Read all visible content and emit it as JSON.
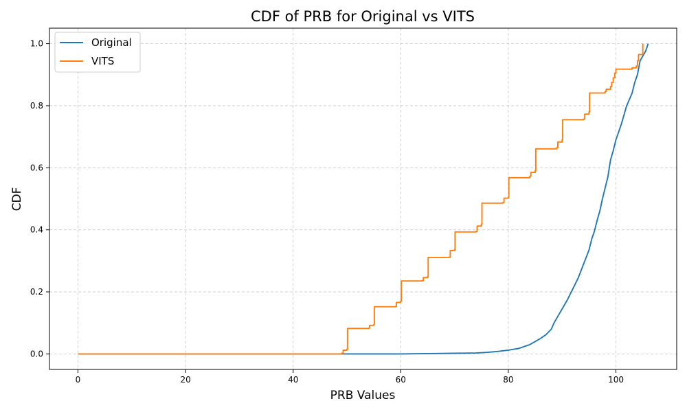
{
  "chart_data": {
    "type": "line",
    "title": "CDF of PRB for Original vs VITS",
    "xlabel": "PRB Values",
    "ylabel": "CDF",
    "xlim": [
      -5.3,
      111.3
    ],
    "ylim": [
      -0.05,
      1.05
    ],
    "xticks": [
      0,
      20,
      40,
      60,
      80,
      100
    ],
    "yticks": [
      0.0,
      0.2,
      0.4,
      0.6,
      0.8,
      1.0
    ],
    "xtick_labels": [
      "0",
      "20",
      "40",
      "60",
      "80",
      "100"
    ],
    "ytick_labels": [
      "0.0",
      "0.2",
      "0.4",
      "0.6",
      "0.8",
      "1.0"
    ],
    "grid": true,
    "legend_position": "top-left",
    "series": [
      {
        "name": "Original",
        "color": "#1f77b4",
        "step": false,
        "points": [
          [
            0,
            0
          ],
          [
            49,
            0
          ],
          [
            60,
            0
          ],
          [
            65,
            0.001
          ],
          [
            70,
            0.002
          ],
          [
            74,
            0.003
          ],
          [
            76,
            0.005
          ],
          [
            78,
            0.008
          ],
          [
            80,
            0.012
          ],
          [
            82,
            0.018
          ],
          [
            84,
            0.03
          ],
          [
            85,
            0.04
          ],
          [
            86,
            0.05
          ],
          [
            87,
            0.062
          ],
          [
            88,
            0.08
          ],
          [
            88.5,
            0.1
          ],
          [
            89,
            0.115
          ],
          [
            90,
            0.145
          ],
          [
            91,
            0.175
          ],
          [
            92,
            0.21
          ],
          [
            93,
            0.245
          ],
          [
            94,
            0.29
          ],
          [
            95,
            0.335
          ],
          [
            95.5,
            0.37
          ],
          [
            96,
            0.395
          ],
          [
            96.5,
            0.43
          ],
          [
            97,
            0.46
          ],
          [
            97.5,
            0.5
          ],
          [
            98,
            0.535
          ],
          [
            98.5,
            0.57
          ],
          [
            99,
            0.625
          ],
          [
            99.5,
            0.655
          ],
          [
            100,
            0.69
          ],
          [
            101,
            0.74
          ],
          [
            101.5,
            0.77
          ],
          [
            102,
            0.8
          ],
          [
            103,
            0.84
          ],
          [
            103.5,
            0.875
          ],
          [
            104,
            0.9
          ],
          [
            104.5,
            0.945
          ],
          [
            105,
            0.96
          ],
          [
            105.5,
            0.975
          ],
          [
            106,
            1.0
          ]
        ]
      },
      {
        "name": "VITS",
        "color": "#ff7f0e",
        "step": true,
        "points": [
          [
            0,
            0
          ],
          [
            49,
            0.002
          ],
          [
            49.3,
            0.012
          ],
          [
            50,
            0.015
          ],
          [
            50.1,
            0.082
          ],
          [
            54,
            0.083
          ],
          [
            54.2,
            0.092
          ],
          [
            55,
            0.095
          ],
          [
            55.1,
            0.152
          ],
          [
            59,
            0.153
          ],
          [
            59.2,
            0.166
          ],
          [
            60,
            0.17
          ],
          [
            60.1,
            0.235
          ],
          [
            64,
            0.236
          ],
          [
            64.2,
            0.246
          ],
          [
            65,
            0.25
          ],
          [
            65.1,
            0.311
          ],
          [
            69,
            0.312
          ],
          [
            69.2,
            0.333
          ],
          [
            70,
            0.336
          ],
          [
            70.1,
            0.393
          ],
          [
            74,
            0.395
          ],
          [
            74.2,
            0.412
          ],
          [
            75,
            0.418
          ],
          [
            75.1,
            0.486
          ],
          [
            79,
            0.488
          ],
          [
            79.2,
            0.502
          ],
          [
            80,
            0.506
          ],
          [
            80.1,
            0.568
          ],
          [
            84,
            0.573
          ],
          [
            84.2,
            0.585
          ],
          [
            85,
            0.59
          ],
          [
            85.1,
            0.661
          ],
          [
            89,
            0.665
          ],
          [
            89.2,
            0.683
          ],
          [
            90,
            0.69
          ],
          [
            90.1,
            0.755
          ],
          [
            94,
            0.757
          ],
          [
            94.2,
            0.773
          ],
          [
            95,
            0.78
          ],
          [
            95.1,
            0.841
          ],
          [
            98,
            0.846
          ],
          [
            98.2,
            0.853
          ],
          [
            99,
            0.862
          ],
          [
            99.2,
            0.875
          ],
          [
            99.5,
            0.89
          ],
          [
            99.8,
            0.905
          ],
          [
            100,
            0.918
          ],
          [
            103,
            0.922
          ],
          [
            103.8,
            0.928
          ],
          [
            104,
            0.945
          ],
          [
            104.2,
            0.965
          ],
          [
            105,
            0.968
          ],
          [
            105,
            1.0
          ]
        ]
      }
    ]
  }
}
